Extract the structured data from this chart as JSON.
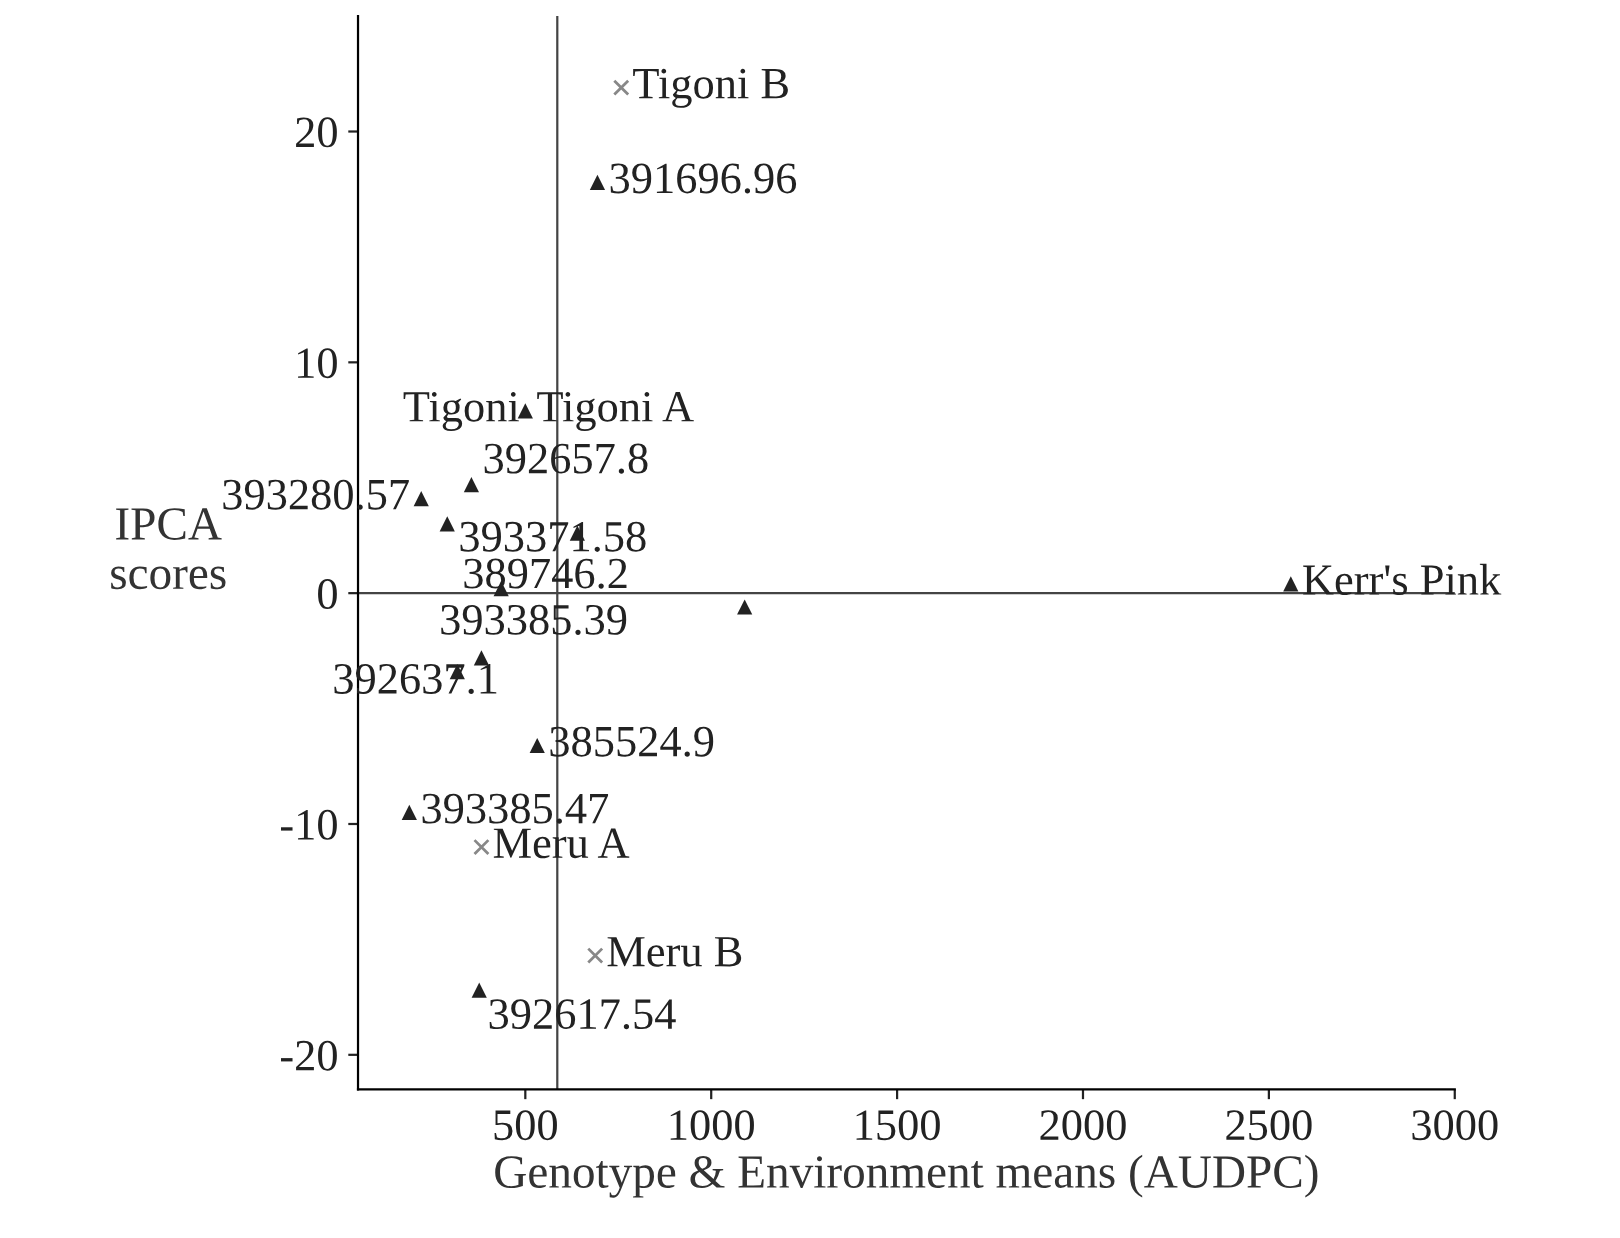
{
  "chart_data": {
    "type": "scatter",
    "xlabel": "Genotype & Environment means (AUDPC)",
    "ylabel": "IPCA\nscores",
    "series": [
      {
        "color": "#222222",
        "marker": "triangle",
        "x": [
          694,
          500,
          220,
          355,
          290,
          640,
          435,
          1090,
          382,
          317,
          532,
          188,
          376,
          2559
        ],
        "values": [
          17.8,
          7.9,
          4.1,
          4.7,
          3.0,
          2.6,
          0.2,
          -0.6,
          -2.8,
          -3.4,
          -6.6,
          -9.5,
          -17.2,
          0.4
        ]
      },
      {
        "color": "#888888",
        "marker": "cross",
        "x": [
          758,
          382,
          688
        ],
        "values": [
          21.9,
          -11.0,
          -15.7
        ]
      }
    ],
    "annotations": [
      {
        "text": "Tigoni B",
        "x": 758,
        "y": 21.9
      },
      {
        "text": "391696.96",
        "x": 694,
        "y": 17.8
      },
      {
        "text": "Tigoni",
        "x": 500,
        "y": 7.9
      },
      {
        "text": "Tigoni A",
        "x": 500,
        "y": 7.9
      },
      {
        "text": "393280.57",
        "x": 220,
        "y": 4.1
      },
      {
        "text": "392657.8",
        "x": 355,
        "y": 4.7
      },
      {
        "text": "393371.58",
        "x": 290,
        "y": 3.0
      },
      {
        "text": "389746.2",
        "x": 435,
        "y": 0.2
      },
      {
        "text": "393385.39",
        "x": 1090,
        "y": -0.6
      },
      {
        "text": "392637.1",
        "x": 317,
        "y": -3.4
      },
      {
        "text": "385524.9",
        "x": 532,
        "y": -6.6
      },
      {
        "text": "393385.47",
        "x": 188,
        "y": -9.5
      },
      {
        "text": "Meru A",
        "x": 382,
        "y": -11.0
      },
      {
        "text": "Meru B",
        "x": 688,
        "y": -15.7
      },
      {
        "text": "392617.54",
        "x": 376,
        "y": -17.2
      },
      {
        "text": "Kerr's Pink",
        "x": 2559,
        "y": 0.4
      }
    ],
    "ref_lines": [
      {
        "axis": "x",
        "value": 586,
        "color": "#444444"
      },
      {
        "axis": "y",
        "value": 0,
        "color": "#444444"
      }
    ],
    "xlim": [
      50,
      3000
    ],
    "xticks": [
      500,
      1000,
      1500,
      2000,
      2500,
      3000
    ],
    "ylim": [
      -21.5,
      25
    ],
    "yticks": [
      -20,
      -10,
      0,
      10,
      20
    ],
    "grid": false,
    "legend": false
  }
}
